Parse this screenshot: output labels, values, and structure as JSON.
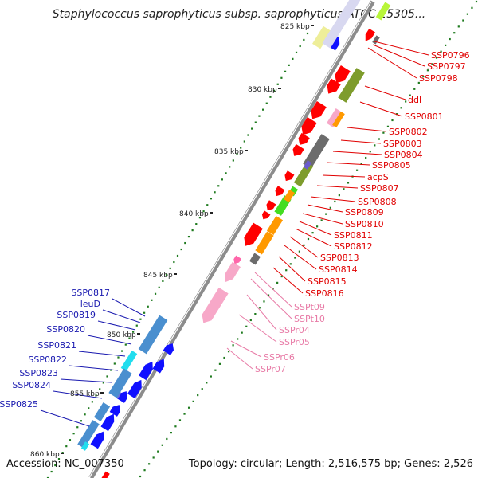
{
  "title": "Staphylococcus saprophyticus subsp. saprophyticus ATCC 15305...",
  "accession_label": "Accession: NC_007350",
  "topology_label": "Topology: circular; Length: 2,516,575 bp; Genes: 2,526",
  "colors": {
    "backbone": "#8c8c8c",
    "tick": "#1e7a1e",
    "label_red": "#e00000",
    "label_blue": "#1a1ab0",
    "label_pink": "#e87aa6",
    "red": "#ff0000",
    "blue": "#1010ff",
    "olive": "#7e9c2c",
    "gray": "#6c6c6c",
    "lightblue": "#4a8fcf",
    "cyan": "#22ddee",
    "green": "#44dd22",
    "orange": "#ff9900",
    "pink": "#f7a8c8",
    "yellow": "#eeee99",
    "purple": "#6a5acd",
    "lime": "#b8f53a"
  },
  "scale_labels": [
    "825 kbp",
    "830 kbp",
    "835 kbp",
    "840 kbp",
    "845 kbp",
    "850 kbp",
    "855 kbp",
    "860 kbp"
  ],
  "right_labels": [
    "SSP0796",
    "SSP0797",
    "SSP0798",
    "ddl",
    "SSP0801",
    "SSP0802",
    "SSP0803",
    "SSP0804",
    "SSP0805",
    "acpS",
    "SSP0807",
    "SSP0808",
    "SSP0809",
    "SSP0810",
    "SSP0811",
    "SSP0812",
    "SSP0813",
    "SSP0814",
    "SSP0815",
    "SSP0816"
  ],
  "pink_labels": [
    "SSPt09",
    "SSPt10",
    "SSPr04",
    "SSPr05",
    "SSPr06",
    "SSPr07"
  ],
  "left_labels": [
    "SSP0817",
    "leuD",
    "SSP0819",
    "SSP0820",
    "SSP0821",
    "SSP0822",
    "SSP0823",
    "SSP0824",
    "SSP0825"
  ]
}
